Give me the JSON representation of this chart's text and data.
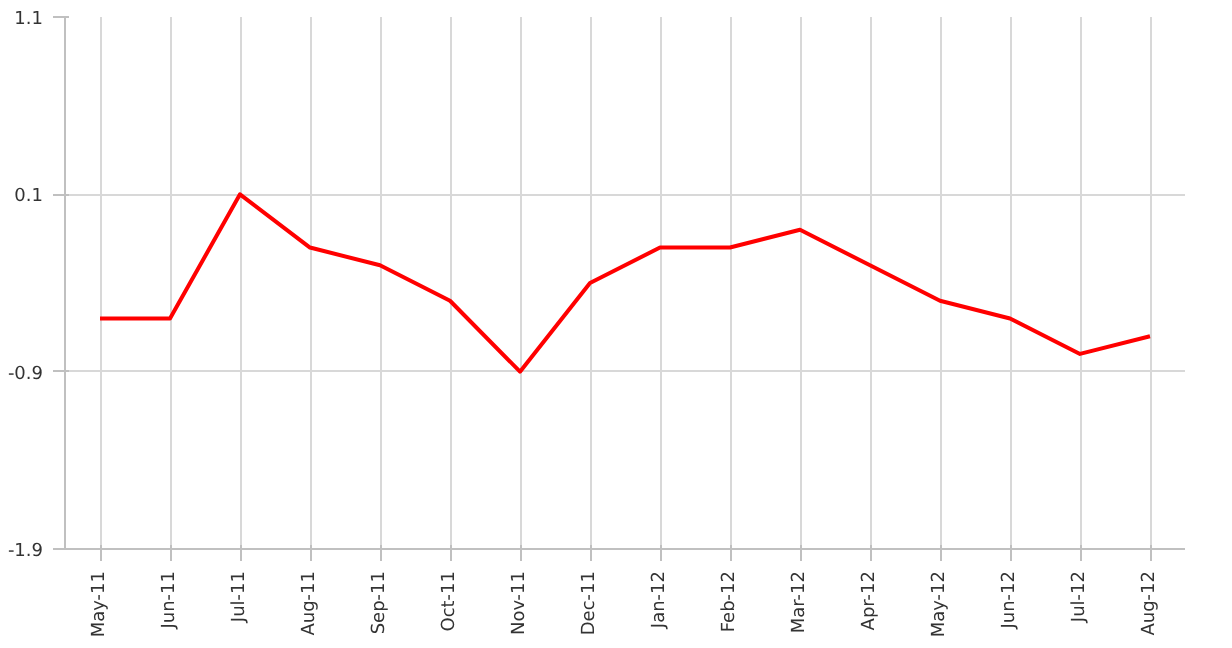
{
  "chart_data": {
    "type": "line",
    "categories": [
      "May-11",
      "Jun-11",
      "Jul-11",
      "Aug-11",
      "Sep-11",
      "Oct-11",
      "Nov-11",
      "Dec-11",
      "Jan-12",
      "Feb-12",
      "Mar-12",
      "Apr-12",
      "May-12",
      "Jun-12",
      "Jul-12",
      "Aug-12"
    ],
    "series": [
      {
        "color": "#ff0000",
        "values": [
          -0.6,
          -0.6,
          0.1,
          -0.2,
          -0.3,
          -0.5,
          -0.9,
          -0.4,
          -0.2,
          -0.2,
          -0.1,
          -0.3,
          -0.5,
          -0.6,
          -0.8,
          -0.7
        ]
      }
    ],
    "ylim": [
      -1.9,
      1.1
    ],
    "yticks": [
      1.1,
      0.1,
      -0.9,
      -1.9
    ],
    "grid": true,
    "marker": "none",
    "line_style": "solid"
  }
}
